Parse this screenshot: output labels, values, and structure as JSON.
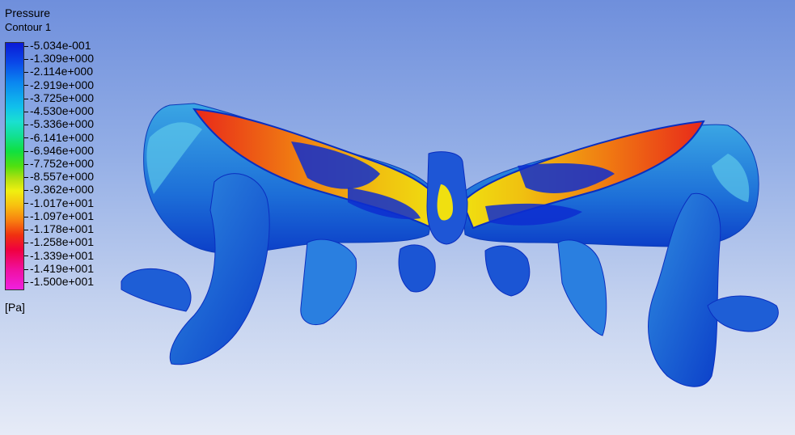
{
  "legend": {
    "title": "Pressure",
    "subtitle": "Contour 1",
    "unit": "[Pa]",
    "ticks": [
      "-5.034e-001",
      "-1.309e+000",
      "-2.114e+000",
      "-2.919e+000",
      "-3.725e+000",
      "-4.530e+000",
      "-5.336e+000",
      "-6.141e+000",
      "-6.946e+000",
      "-7.752e+000",
      "-8.557e+000",
      "-9.362e+000",
      "-1.017e+001",
      "-1.097e+001",
      "-1.178e+001",
      "-1.258e+001",
      "-1.339e+001",
      "-1.419e+001",
      "-1.500e+001"
    ]
  },
  "colors": {
    "background_top": "#6f8fdc",
    "background_bottom": "#e6ebf7",
    "surface_blue": "#1f62d6",
    "surface_cyan": "#32b6e6",
    "high_pressure_red": "#ee3a1e",
    "mid_yellow": "#f0e010"
  }
}
